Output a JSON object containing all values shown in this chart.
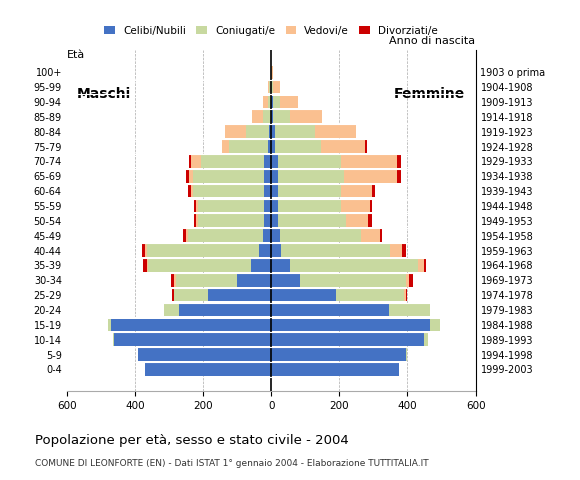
{
  "age_groups": [
    "0-4",
    "5-9",
    "10-14",
    "15-19",
    "20-24",
    "25-29",
    "30-34",
    "35-39",
    "40-44",
    "45-49",
    "50-54",
    "55-59",
    "60-64",
    "65-69",
    "70-74",
    "75-79",
    "80-84",
    "85-89",
    "90-94",
    "95-99",
    "100+"
  ],
  "birth_years": [
    "1999-2003",
    "1994-1998",
    "1989-1993",
    "1984-1988",
    "1979-1983",
    "1974-1978",
    "1969-1973",
    "1964-1968",
    "1959-1963",
    "1954-1958",
    "1949-1953",
    "1944-1948",
    "1939-1943",
    "1934-1938",
    "1929-1933",
    "1924-1928",
    "1919-1923",
    "1914-1918",
    "1909-1913",
    "1904-1908",
    "1903 o prima"
  ],
  "males": {
    "celibe": [
      370,
      390,
      460,
      470,
      270,
      185,
      100,
      60,
      35,
      25,
      20,
      20,
      20,
      20,
      20,
      10,
      5,
      0,
      0,
      0,
      0
    ],
    "coniugato": [
      0,
      0,
      5,
      10,
      45,
      100,
      180,
      300,
      330,
      220,
      195,
      195,
      210,
      210,
      185,
      115,
      70,
      25,
      10,
      5,
      0
    ],
    "vedovo": [
      0,
      0,
      0,
      0,
      0,
      0,
      5,
      5,
      5,
      5,
      5,
      5,
      5,
      10,
      30,
      20,
      60,
      30,
      15,
      5,
      0
    ],
    "divorziato": [
      0,
      0,
      0,
      0,
      0,
      5,
      10,
      10,
      10,
      10,
      5,
      5,
      10,
      10,
      5,
      0,
      0,
      0,
      0,
      0,
      0
    ]
  },
  "females": {
    "nubile": [
      375,
      395,
      450,
      465,
      345,
      190,
      85,
      55,
      30,
      25,
      20,
      20,
      20,
      20,
      20,
      10,
      10,
      5,
      5,
      0,
      0
    ],
    "coniugata": [
      0,
      5,
      10,
      30,
      120,
      200,
      310,
      375,
      320,
      240,
      200,
      185,
      185,
      195,
      185,
      135,
      120,
      50,
      20,
      5,
      0
    ],
    "vedova": [
      0,
      0,
      0,
      0,
      0,
      5,
      10,
      20,
      35,
      55,
      65,
      85,
      90,
      155,
      165,
      130,
      120,
      95,
      55,
      20,
      5
    ],
    "divorziata": [
      0,
      0,
      0,
      0,
      0,
      5,
      10,
      5,
      10,
      5,
      10,
      5,
      10,
      10,
      10,
      5,
      0,
      0,
      0,
      0,
      0
    ]
  },
  "colors": {
    "celibe": "#4472c4",
    "coniugato": "#c8d9a0",
    "vedovo": "#fac090",
    "divorziato": "#cc0000"
  },
  "title": "Popolazione per età, sesso e stato civile - 2004",
  "subtitle": "COMUNE DI LEONFORTE (EN) - Dati ISTAT 1° gennaio 2004 - Elaborazione TUTTITALIA.IT",
  "legend_labels": [
    "Celibi/Nubili",
    "Coniugati/e",
    "Vedovi/e",
    "Divorziati/e"
  ],
  "label_maschi": "Maschi",
  "label_femmine": "Femmine",
  "label_eta": "Età",
  "label_anno": "Anno di nascita",
  "xlim": 600,
  "background_color": "#ffffff",
  "grid_color": "#aaaaaa",
  "fig_width": 5.8,
  "fig_height": 4.8,
  "dpi": 100
}
